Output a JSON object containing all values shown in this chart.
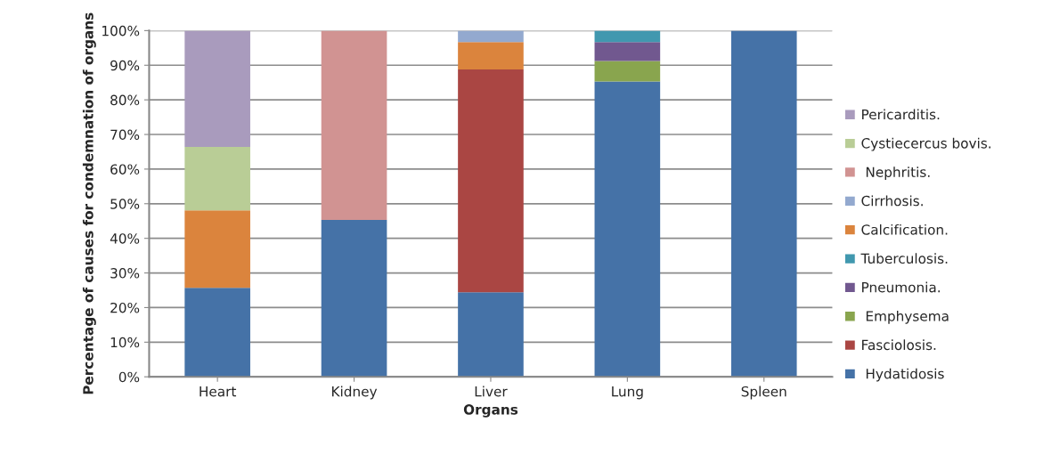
{
  "chart_data": {
    "type": "bar",
    "stacked": true,
    "xlabel": "Organs",
    "ylabel": "Percentage of causes for condemnation of organs",
    "categories": [
      "Heart",
      "Kidney",
      "Liver",
      "Lung",
      "Spleen"
    ],
    "series": [
      {
        "name": " Hydatidosis",
        "color": "#4572a7",
        "values": [
          25.7,
          45.3,
          24.4,
          85.3,
          100
        ]
      },
      {
        "name": "Fasciolosis.",
        "color": "#aa4643",
        "values": [
          null,
          null,
          64.4,
          null,
          null
        ]
      },
      {
        "name": " Emphysema",
        "color": "#89a54e",
        "values": [
          null,
          null,
          null,
          5.9,
          null
        ]
      },
      {
        "name": "Pneumonia.",
        "color": "#71588f",
        "values": [
          null,
          null,
          null,
          5.5,
          null
        ]
      },
      {
        "name": "Tuberculosis.",
        "color": "#4198af",
        "values": [
          null,
          null,
          null,
          3.3,
          null
        ]
      },
      {
        "name": "Calcification.",
        "color": "#db843d",
        "values": [
          22.4,
          null,
          7.9,
          null,
          null
        ]
      },
      {
        "name": "Cirrhosis.",
        "color": "#93a9cf",
        "values": [
          null,
          null,
          3.3,
          null,
          null
        ]
      },
      {
        "name": " Nephritis.",
        "color": "#d19392",
        "values": [
          null,
          54.7,
          null,
          null,
          null
        ]
      },
      {
        "name": "Cystiecercus bovis.",
        "color": "#b9cd96",
        "values": [
          18.3,
          null,
          null,
          null,
          null
        ]
      },
      {
        "name": "Pericarditis.",
        "color": "#a99bbd",
        "values": [
          33.6,
          null,
          null,
          null,
          null
        ]
      }
    ],
    "ylim": [
      0,
      100
    ],
    "yticks": [
      {
        "value": 0,
        "label": "0%"
      },
      {
        "value": 10,
        "label": "10%"
      },
      {
        "value": 20,
        "label": "20%"
      },
      {
        "value": 30,
        "label": "30%"
      },
      {
        "value": 40,
        "label": "40%"
      },
      {
        "value": 50,
        "label": "50%"
      },
      {
        "value": 60,
        "label": "60%"
      },
      {
        "value": 70,
        "label": "70%"
      },
      {
        "value": 80,
        "label": "80%"
      },
      {
        "value": 90,
        "label": "90%"
      },
      {
        "value": 100,
        "label": "100%"
      }
    ],
    "grid": "y",
    "legend": "right"
  }
}
